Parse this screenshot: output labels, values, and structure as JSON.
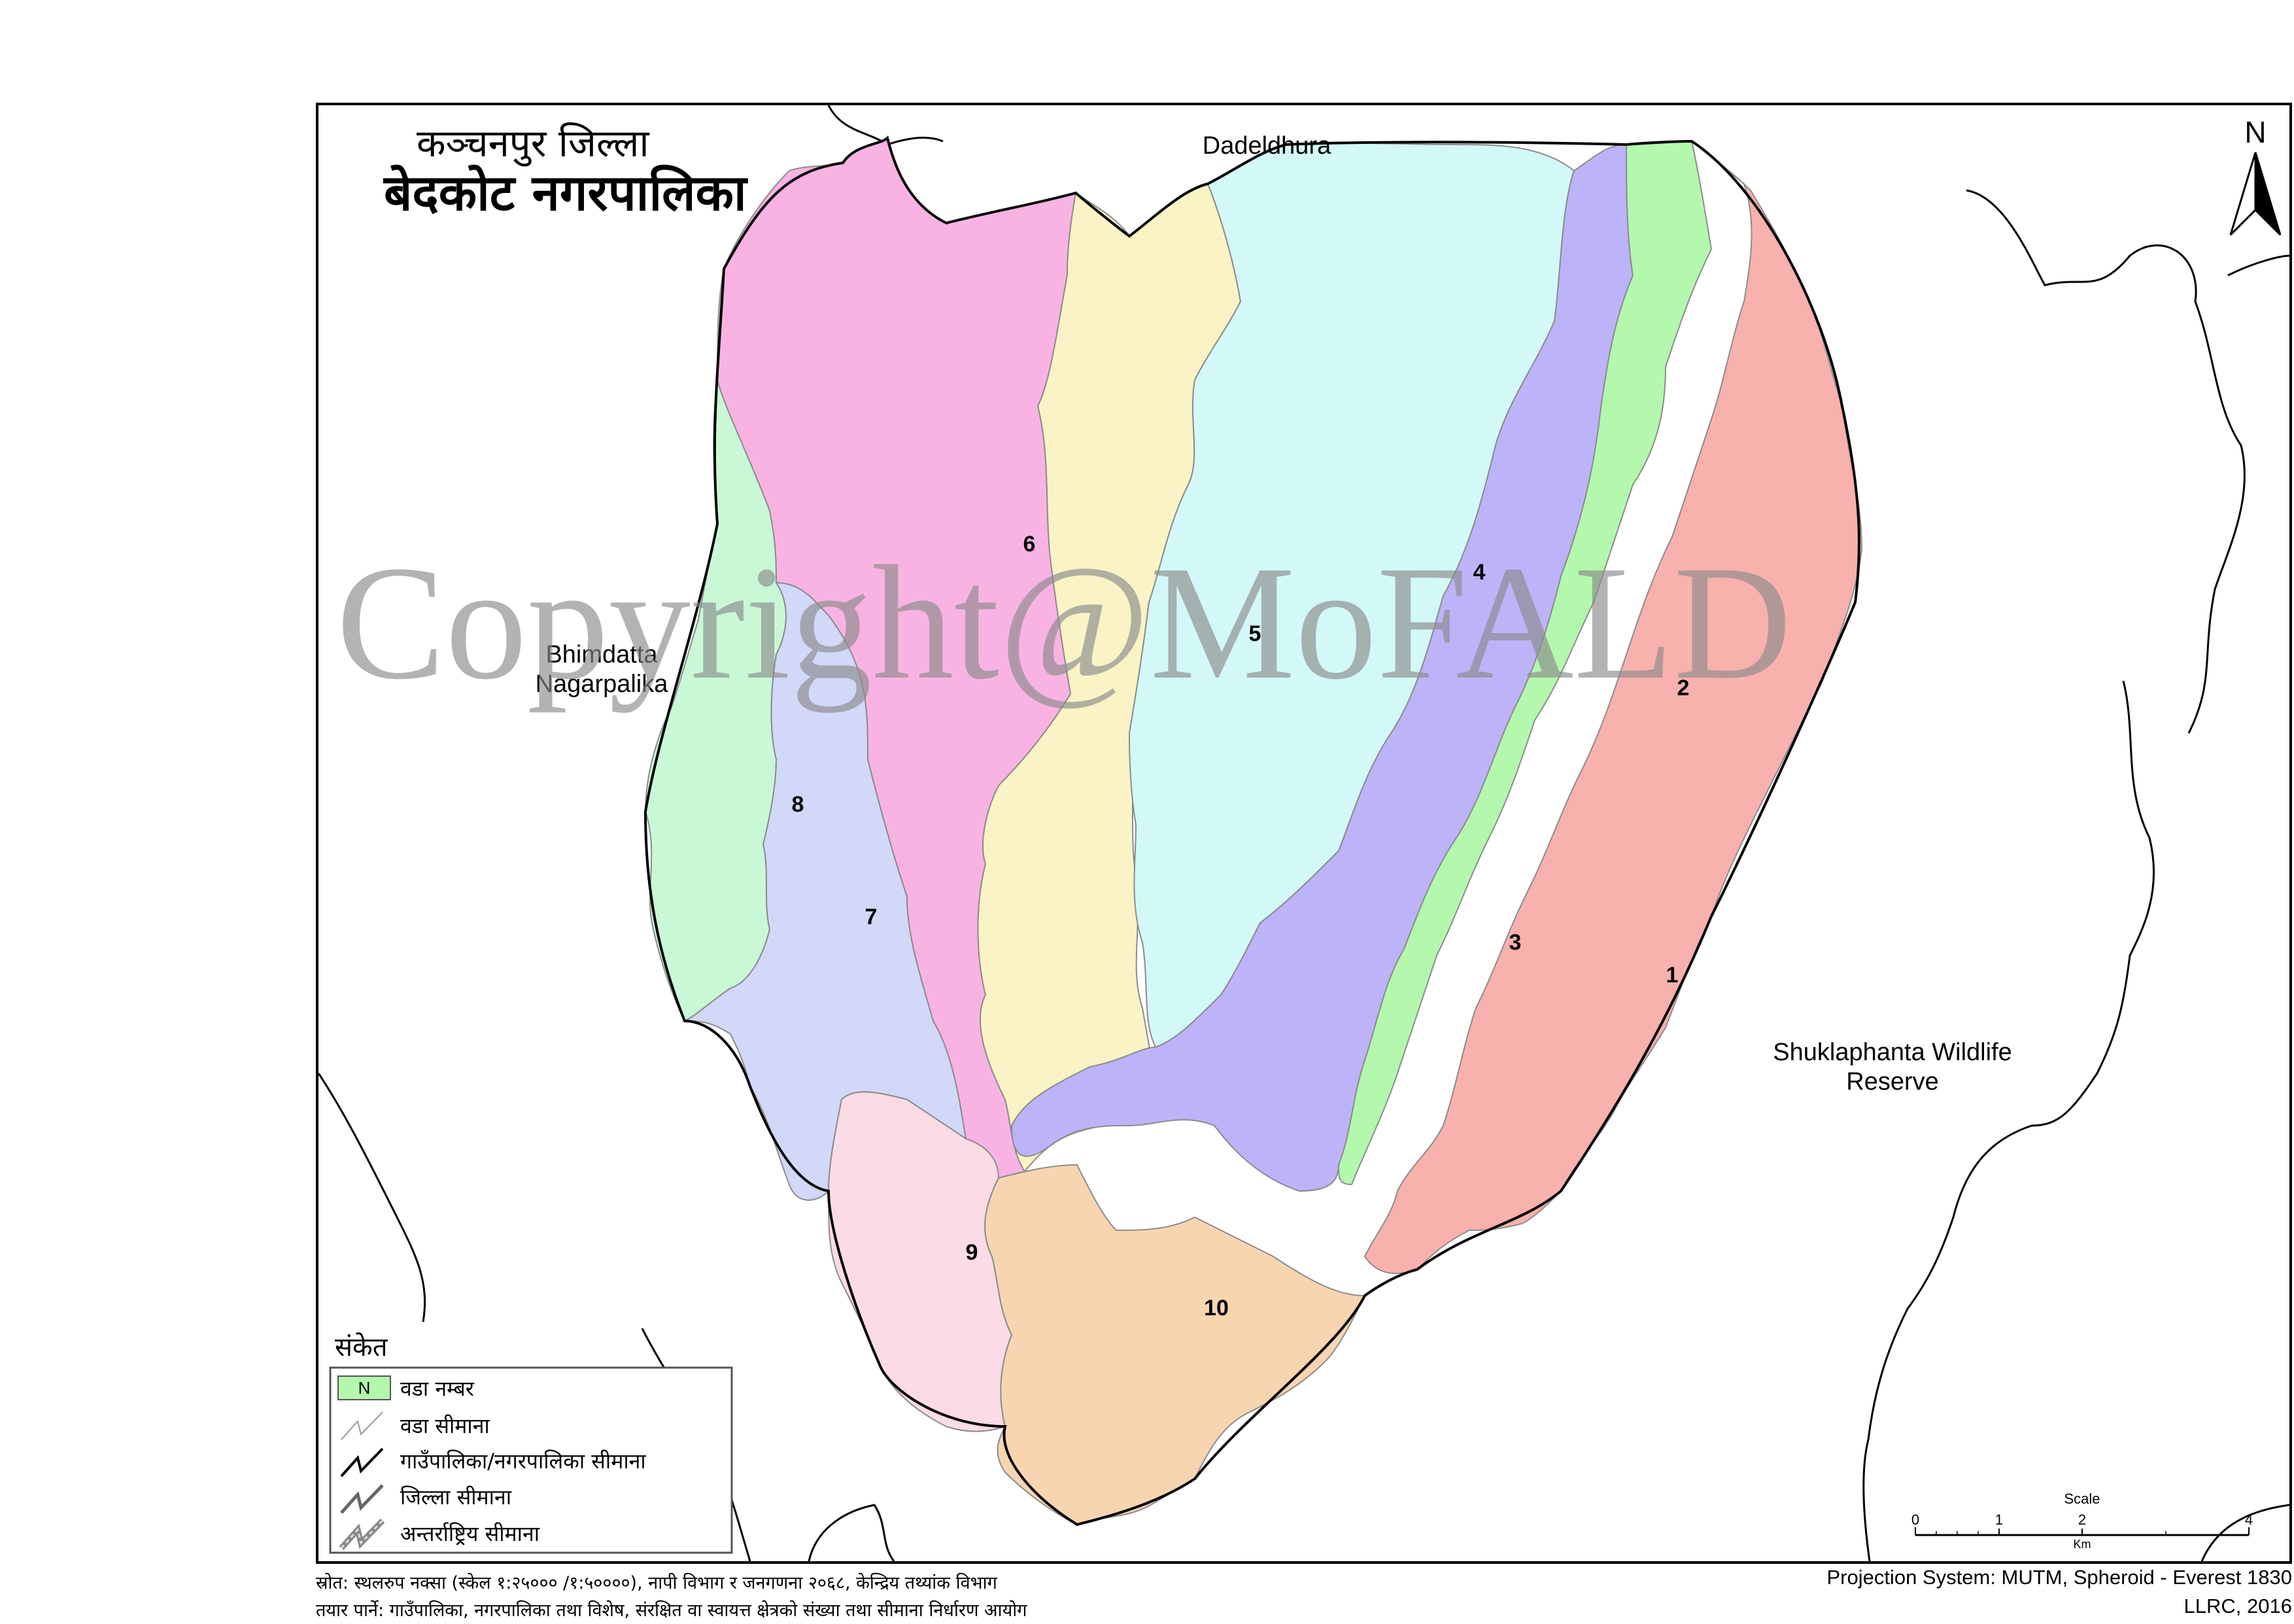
{
  "title": {
    "district": "कञ्चनपुर जिल्ला",
    "municipality": "बेदकोट नगरपालिका"
  },
  "watermark": "Copyright@MoFALD",
  "neighbors": {
    "north": "Dadeldhura",
    "west_line1": "Bhimdatta",
    "west_line2": "Nagarpalika",
    "east_line1": "Shuklaphanta Wildlife",
    "east_line2": "Reserve"
  },
  "wards": [
    {
      "number": "1",
      "color": "#f8b1ad"
    },
    {
      "number": "2",
      "color": "#b3f8ad"
    },
    {
      "number": "3",
      "color": "#bdb3f8"
    },
    {
      "number": "4",
      "color": "#d3f8f8"
    },
    {
      "number": "5",
      "color": "#faf3c6"
    },
    {
      "number": "6",
      "color": "#f8b3e3"
    },
    {
      "number": "7",
      "color": "#d1d8f8"
    },
    {
      "number": "8",
      "color": "#c9f8d7"
    },
    {
      "number": "9",
      "color": "#fadbe6"
    },
    {
      "number": "10",
      "color": "#f8d5b1"
    }
  ],
  "north_arrow": {
    "letter": "N"
  },
  "legend": {
    "title": "संकेत",
    "ward_symbol": "N",
    "items": [
      {
        "label": "वडा नम्बर"
      },
      {
        "label": "वडा सीमाना"
      },
      {
        "label": "गाउँपालिका/नगरपालिका सीमाना"
      },
      {
        "label": "जिल्ला सीमाना"
      },
      {
        "label": "अन्तर्राष्ट्रिय सीमाना"
      }
    ]
  },
  "scale": {
    "title": "Scale",
    "ticks": [
      "0",
      "1",
      "2",
      "4"
    ],
    "unit": "Km"
  },
  "footer": {
    "source": "स्रोत: स्थलरुप नक्सा (स्केल १:२५००० /१:५००००), नापी विभाग र जनगणना २०६८, केन्द्रिय तथ्यांक विभाग",
    "prepared_by": "तयार पार्ने: गाउँपालिका, नगरपालिका तथा विशेष, संरक्षित वा स्वायत्त क्षेत्रको संख्या तथा सीमाना निर्धारण आयोग",
    "projection": "Projection System: MUTM, Spheroid - Everest 1830",
    "credit": "LLRC, 2016"
  },
  "colors": {
    "ward_boundary": "#8c8c8c",
    "municipality_boundary": "#000000",
    "district_boundary": "#000000"
  }
}
